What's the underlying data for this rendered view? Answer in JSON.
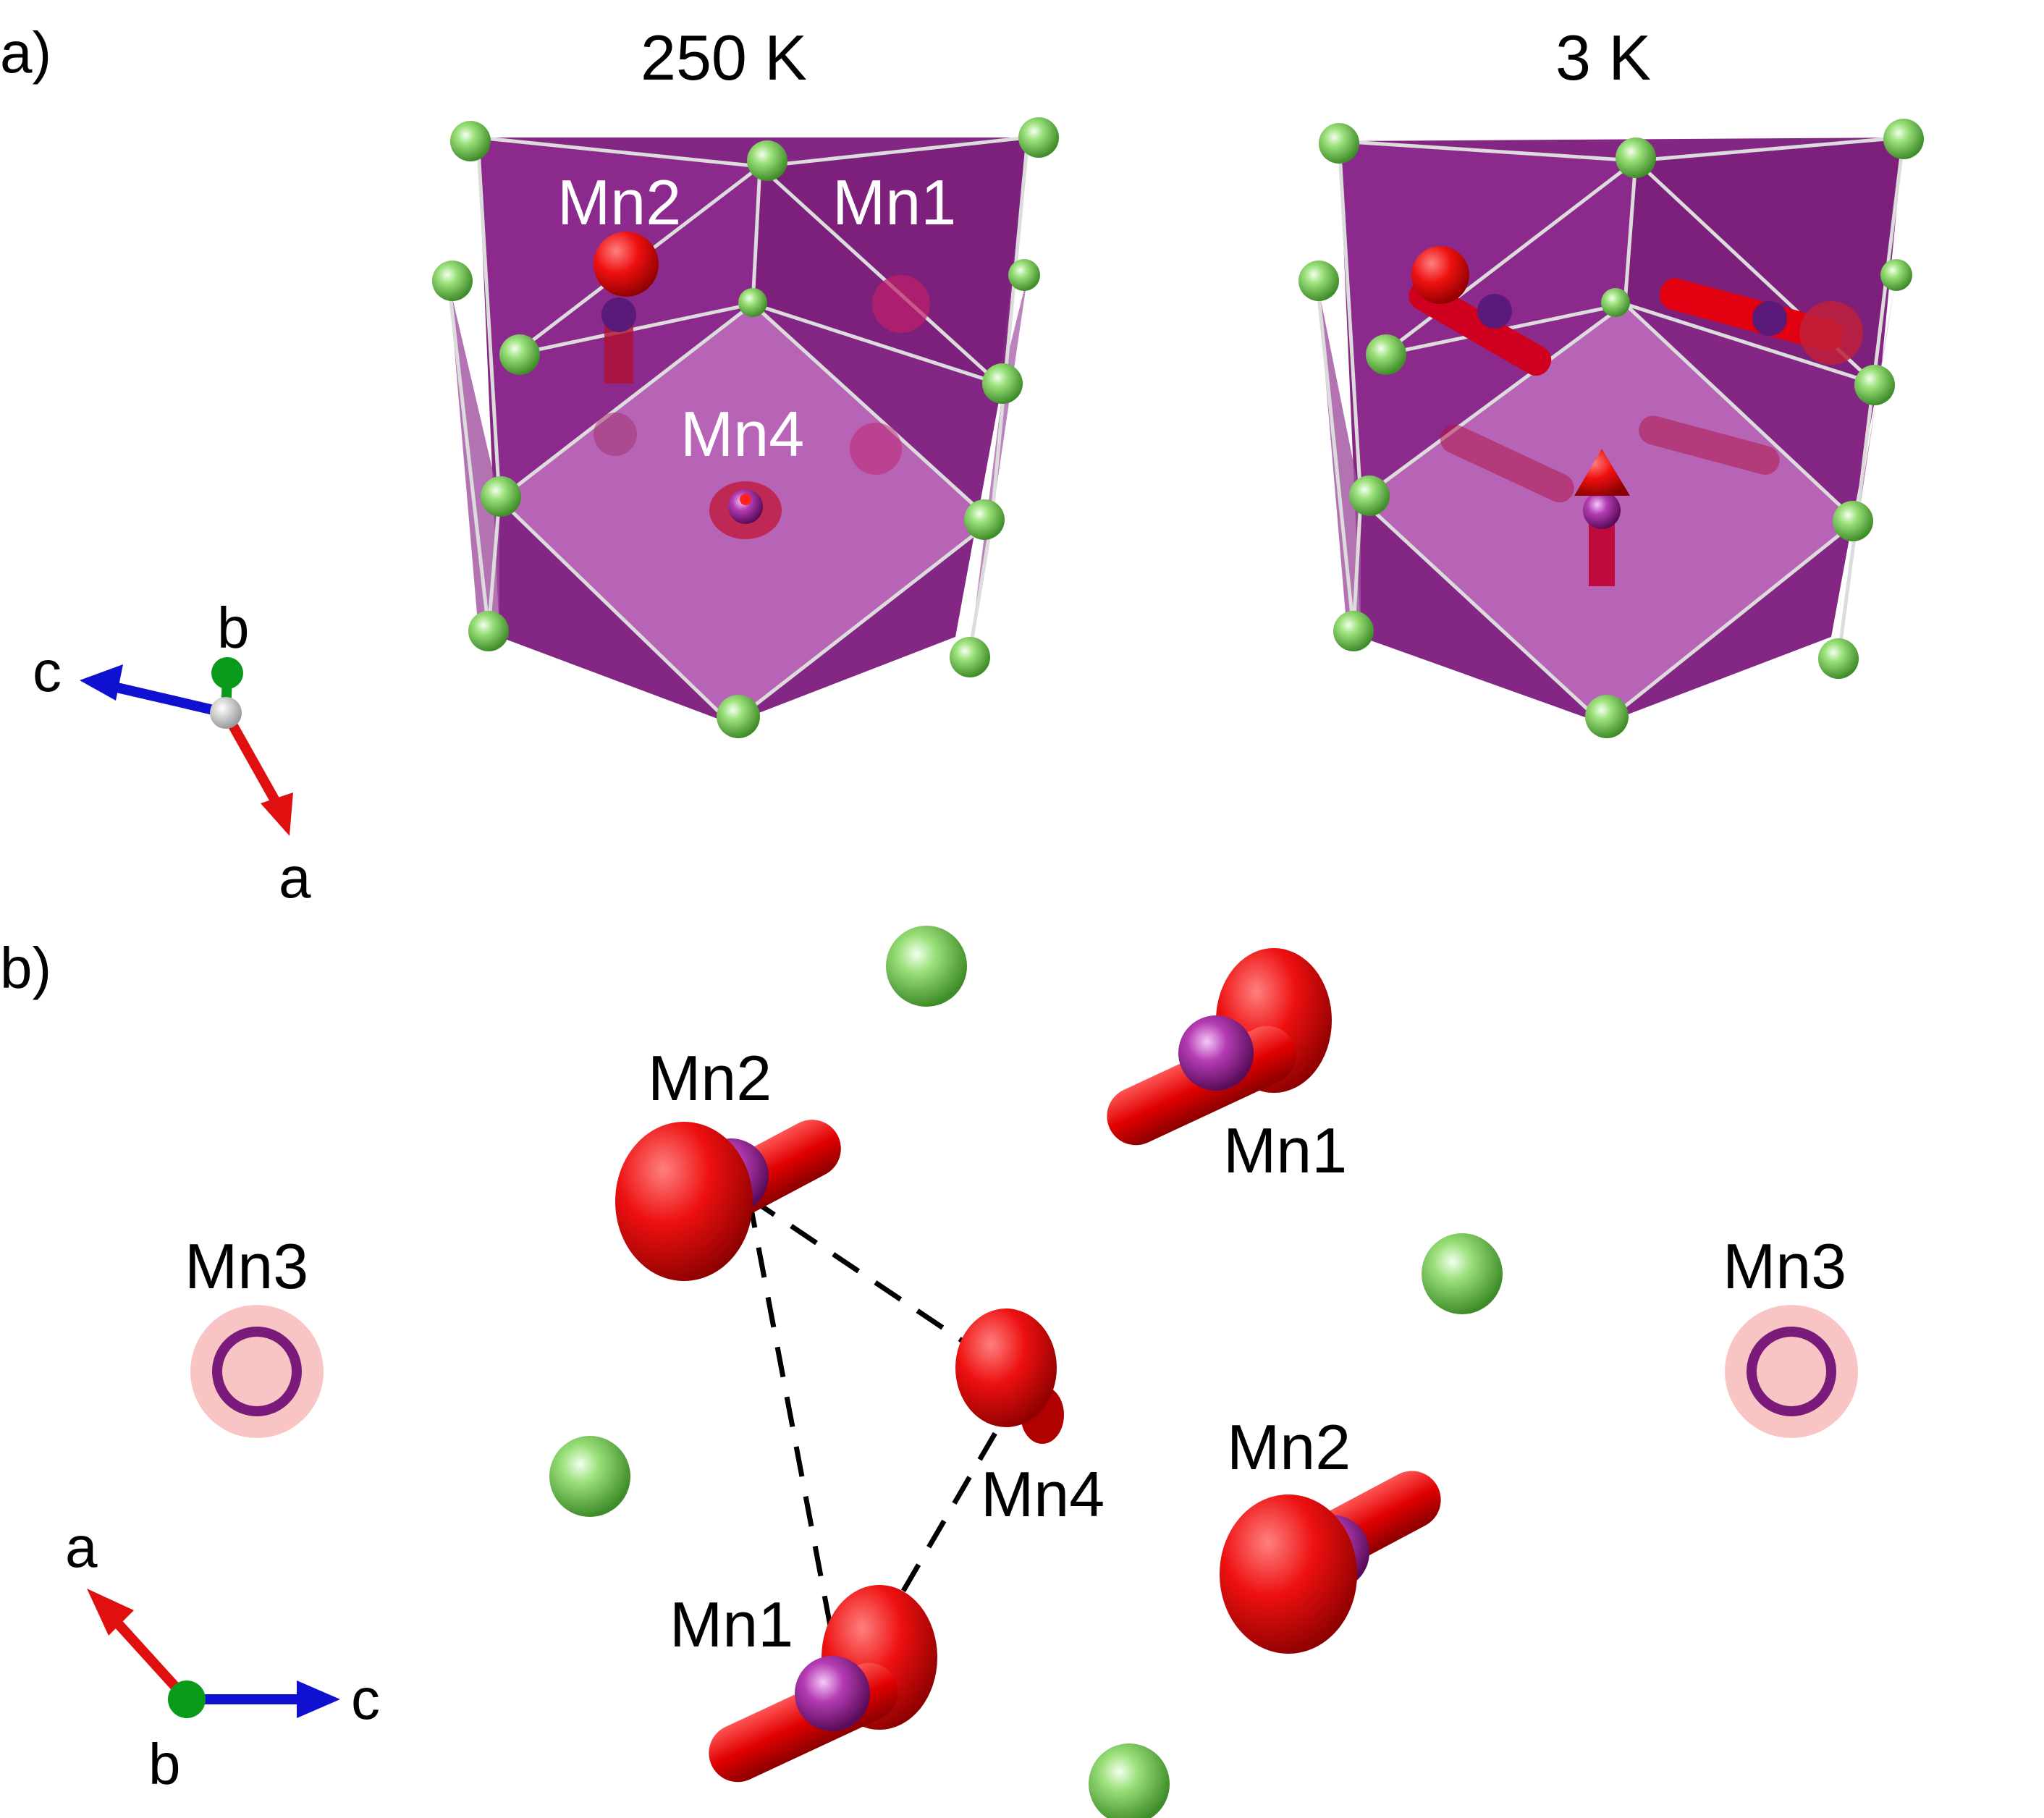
{
  "panel_a": {
    "label": "a)",
    "left_title": "250 K",
    "right_title": "3 K",
    "left_labels": {
      "mn2": "Mn2",
      "mn1": "Mn1",
      "mn4": "Mn4"
    },
    "axes": {
      "c": "c",
      "b": "b",
      "a": "a"
    }
  },
  "panel_b": {
    "label": "b)",
    "atoms": {
      "mn2_top": "Mn2",
      "mn1_top": "Mn1",
      "mn3_left": "Mn3",
      "mn3_right": "Mn3",
      "mn4": "Mn4",
      "mn2_bottom": "Mn2",
      "mn1_bottom": "Mn1"
    },
    "axes": {
      "a": "a",
      "c": "c",
      "b": "b"
    }
  },
  "colors": {
    "polyhedron": "#8e1f8e",
    "green_atom": "#6fbf4a",
    "mn_atom": "#a01c9c",
    "spin_arrow": "#e00000",
    "axis_a": "#e01010",
    "axis_b": "#0a9a1a",
    "axis_c": "#1010d0"
  }
}
